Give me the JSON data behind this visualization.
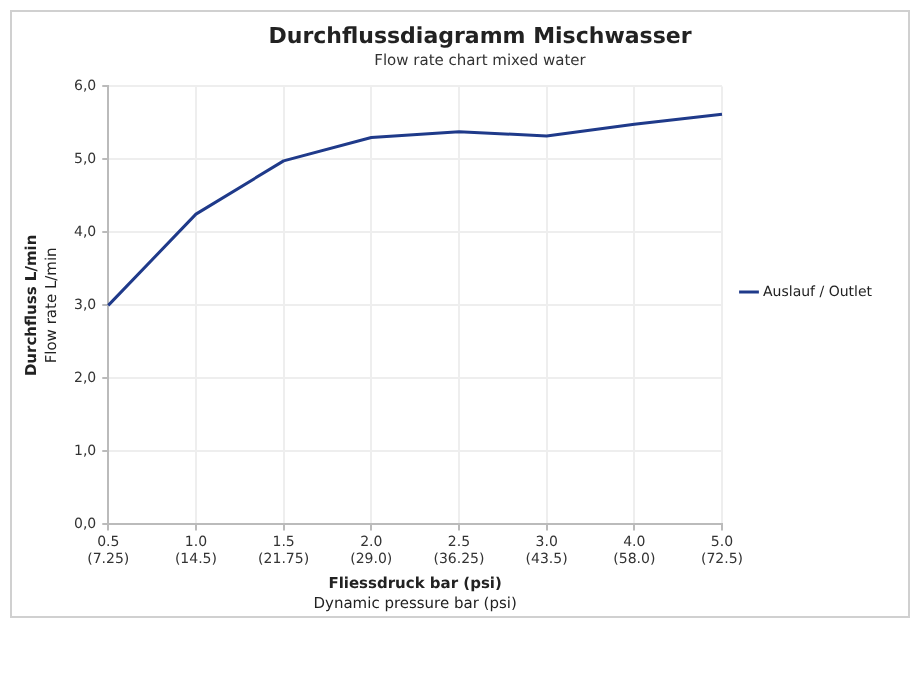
{
  "chart_data": {
    "type": "line",
    "title": "Durchflussdiagramm Mischwasser",
    "subtitle": "Flow rate chart mixed water",
    "xlabel": "Fliessdruck bar (psi)\nDynamic pressure bar (psi)",
    "ylabel": "Durchfluss L/min\nFlow rate L/min",
    "categories": [
      "0.5\n(7.25)",
      "1.0\n(14.5)",
      "1.5\n(21.75)",
      "2.0\n(29.0)",
      "2.5\n(36.25)",
      "3.0\n(43.5)",
      "4.0\n(58.0)",
      "5.0\n(72.5)"
    ],
    "series": [
      {
        "name": "Auslauf / Outlet",
        "color": "#1f3a8a",
        "values": [
          3.0,
          4.25,
          4.98,
          5.3,
          5.38,
          5.32,
          5.48,
          5.62
        ]
      }
    ],
    "ylim": [
      0,
      6
    ],
    "yticks": [
      {
        "value": 0,
        "label": "0,0"
      },
      {
        "value": 1,
        "label": "1,0"
      },
      {
        "value": 2,
        "label": "2,0"
      },
      {
        "value": 3,
        "label": "3,0"
      },
      {
        "value": 4,
        "label": "4,0"
      },
      {
        "value": 5,
        "label": "5,0"
      },
      {
        "value": 6,
        "label": "6,0"
      }
    ],
    "grid": true,
    "legend": "right",
    "marker": "none",
    "line_style": "solid"
  }
}
